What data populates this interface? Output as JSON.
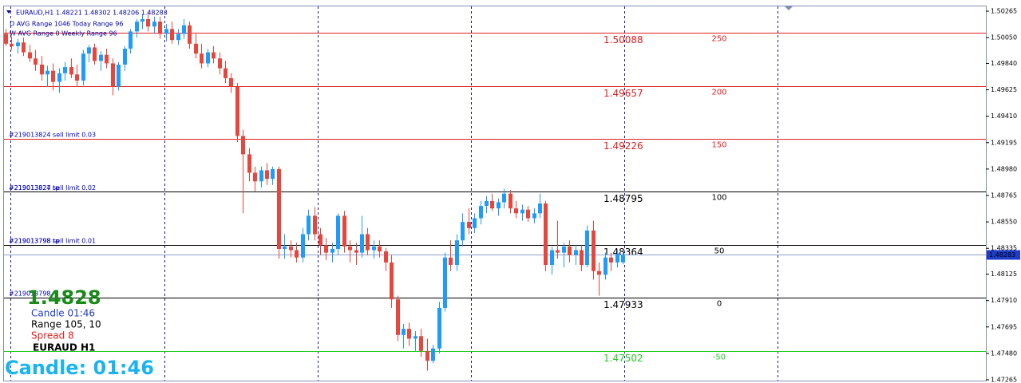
{
  "chart_data": {
    "type": "candlestick",
    "header": [
      "EURAUD,H1  1.48221 1.48302 1.48206 1.48283",
      "D AVG Range 1046    Today Range 96",
      "W AVG Range 0   Weekly Range 96"
    ],
    "up_color": "#1e9bff",
    "down_color": "#e8453c",
    "open": [
      1.5008,
      1.5,
      1.4998,
      1.5001,
      1.4993,
      1.4988,
      1.4983,
      1.4975,
      1.4978,
      1.4969,
      1.4976,
      1.4981,
      1.4975,
      1.497,
      1.4992,
      1.4997,
      1.4986,
      1.4991,
      1.4984,
      1.4965,
      1.4983,
      1.4996,
      1.501,
      1.5018,
      1.502,
      1.5014,
      1.5018,
      1.5008,
      1.5012,
      1.5003,
      1.5008,
      1.5015,
      1.5,
      1.4992,
      1.4984,
      1.4993,
      1.4988,
      1.498,
      1.4972,
      1.4965,
      1.4925,
      1.491,
      1.4895,
      1.4888,
      1.4897,
      1.489,
      1.4898,
      1.4833,
      1.4835,
      1.4832,
      1.4826,
      1.4845,
      1.486,
      1.4845,
      1.4836,
      1.483,
      1.4833,
      1.486,
      1.4835,
      1.4832,
      1.483,
      1.4845,
      1.4832,
      1.4835,
      1.4831,
      1.4822,
      1.4792,
      1.4763,
      1.4768,
      1.476,
      1.4762,
      1.475,
      1.4742,
      1.4752,
      1.4785,
      1.4826,
      1.482,
      1.484,
      1.4855,
      1.485,
      1.4858,
      1.4868,
      1.4872,
      1.4866,
      1.4871,
      1.4878,
      1.4866,
      1.4862,
      1.4865,
      1.4858,
      1.4862,
      1.487,
      1.482,
      1.4832,
      1.483,
      1.4835,
      1.4828,
      1.4832,
      1.482,
      1.4848,
      1.4815,
      1.4812,
      1.4826,
      1.4822,
      1.48221
    ],
    "high": [
      1.5012,
      1.5006,
      1.5004,
      1.5005,
      1.4999,
      1.4995,
      1.499,
      1.4982,
      1.4984,
      1.498,
      1.4985,
      1.4988,
      1.4983,
      1.4995,
      1.4999,
      1.5,
      1.4994,
      1.4996,
      1.4988,
      1.4985,
      1.4998,
      1.5012,
      1.502,
      1.5024,
      1.5026,
      1.5022,
      1.5022,
      1.5016,
      1.5018,
      1.5012,
      1.502,
      1.5018,
      1.5008,
      1.5,
      1.4996,
      1.4998,
      1.4993,
      1.4986,
      1.4976,
      1.4968,
      1.493,
      1.4915,
      1.49,
      1.49,
      1.4903,
      1.49,
      1.49,
      1.4845,
      1.484,
      1.4838,
      1.485,
      1.4865,
      1.4867,
      1.485,
      1.4842,
      1.4838,
      1.4862,
      1.4864,
      1.484,
      1.4838,
      1.486,
      1.485,
      1.484,
      1.484,
      1.4834,
      1.4828,
      1.4795,
      1.4772,
      1.4773,
      1.4766,
      1.4768,
      1.476,
      1.4755,
      1.479,
      1.483,
      1.484,
      1.4845,
      1.4862,
      1.4866,
      1.4862,
      1.4872,
      1.4876,
      1.4878,
      1.4874,
      1.4882,
      1.4881,
      1.4872,
      1.4869,
      1.4868,
      1.4866,
      1.4878,
      1.4872,
      1.4835,
      1.4856,
      1.4838,
      1.484,
      1.4836,
      1.4836,
      1.4852,
      1.4856,
      1.4822,
      1.483,
      1.483,
      1.4832,
      1.48302
    ],
    "low": [
      1.4998,
      1.4995,
      1.4992,
      1.499,
      1.4985,
      1.4978,
      1.497,
      1.4965,
      1.4962,
      1.496,
      1.497,
      1.4972,
      1.4965,
      1.4966,
      1.4985,
      1.4983,
      1.4978,
      1.498,
      1.4958,
      1.4962,
      1.4978,
      1.4992,
      1.5005,
      1.5012,
      1.501,
      1.5008,
      1.5004,
      1.5002,
      1.5,
      1.4999,
      1.5004,
      1.4996,
      1.4988,
      1.498,
      1.4981,
      1.4984,
      1.4975,
      1.4968,
      1.496,
      1.492,
      1.4862,
      1.4888,
      1.488,
      1.4883,
      1.4885,
      1.4885,
      1.4825,
      1.4825,
      1.4826,
      1.4822,
      1.4822,
      1.484,
      1.484,
      1.4828,
      1.4824,
      1.4822,
      1.4828,
      1.483,
      1.4822,
      1.482,
      1.4826,
      1.4828,
      1.4825,
      1.4826,
      1.4815,
      1.4785,
      1.4758,
      1.4752,
      1.4754,
      1.475,
      1.4745,
      1.4734,
      1.474,
      1.4748,
      1.4782,
      1.4815,
      1.4815,
      1.4835,
      1.4845,
      1.4846,
      1.4853,
      1.4862,
      1.4864,
      1.486,
      1.4866,
      1.4862,
      1.4858,
      1.4856,
      1.4855,
      1.4854,
      1.4858,
      1.4815,
      1.4812,
      1.4825,
      1.4818,
      1.4822,
      1.482,
      1.4815,
      1.4818,
      1.4808,
      1.4795,
      1.4808,
      1.4815,
      1.4818,
      1.48206
    ],
    "close": [
      1.5,
      1.4998,
      1.5001,
      1.4993,
      1.4988,
      1.4983,
      1.4975,
      1.4978,
      1.4969,
      1.4976,
      1.4981,
      1.4975,
      1.497,
      1.4992,
      1.4997,
      1.4986,
      1.4991,
      1.4984,
      1.4965,
      1.4983,
      1.4996,
      1.501,
      1.5018,
      1.502,
      1.5014,
      1.5018,
      1.5008,
      1.5012,
      1.5003,
      1.5008,
      1.5015,
      1.5,
      1.4992,
      1.4984,
      1.4993,
      1.4988,
      1.498,
      1.4972,
      1.4965,
      1.4925,
      1.491,
      1.4895,
      1.4888,
      1.4897,
      1.489,
      1.4898,
      1.4833,
      1.4835,
      1.4832,
      1.4826,
      1.4845,
      1.486,
      1.4845,
      1.4836,
      1.483,
      1.4833,
      1.486,
      1.4835,
      1.4832,
      1.483,
      1.4845,
      1.4832,
      1.4835,
      1.4831,
      1.4822,
      1.4792,
      1.4763,
      1.4768,
      1.476,
      1.4762,
      1.475,
      1.4742,
      1.4752,
      1.4785,
      1.4826,
      1.482,
      1.484,
      1.4855,
      1.485,
      1.4858,
      1.4868,
      1.4872,
      1.4866,
      1.4871,
      1.4878,
      1.4866,
      1.4862,
      1.4865,
      1.4858,
      1.4862,
      1.487,
      1.482,
      1.4832,
      1.483,
      1.4835,
      1.4828,
      1.4832,
      1.482,
      1.4848,
      1.4815,
      1.4812,
      1.4826,
      1.4822,
      1.4829,
      1.48283
    ],
    "ylim": [
      1.47265,
      1.50265
    ],
    "yticks": [
      1.50265,
      {
        "value": 1.5005,
        "label": "1.50050"
      },
      {
        "value": 1.4984,
        "label": "1.49840"
      },
      1.49625,
      {
        "value": 1.4941,
        "label": "1.49410"
      },
      1.49195,
      {
        "value": 1.4898,
        "label": "1.48980"
      },
      1.48765,
      {
        "value": 1.4855,
        "label": "1.48550"
      },
      1.48335,
      1.48125,
      {
        "value": 1.4791,
        "label": "1.47910"
      },
      1.47695,
      {
        "value": 1.4748,
        "label": "1.47480"
      },
      1.47265
    ],
    "current_price": 1.48283,
    "levels": [
      {
        "price": 1.50088,
        "pips": 250,
        "color": "#e02020"
      },
      {
        "price": 1.49657,
        "pips": 200,
        "color": "#e02020"
      },
      {
        "price": 1.49226,
        "pips": 150,
        "color": "#e02020"
      },
      {
        "price": 1.48795,
        "pips": 100,
        "color": "#000000"
      },
      {
        "price": 1.48364,
        "pips": 50,
        "color": "#000000"
      },
      {
        "price": 1.47933,
        "pips": 0,
        "color": "#000000"
      },
      {
        "price": 1.47502,
        "pips": -50,
        "color": "#22cc22"
      }
    ],
    "orders": [
      {
        "text": "#219013824 sell limit 0.03",
        "price": 1.49226
      },
      {
        "text": "#219013827 tp",
        "price": 1.48795
      },
      {
        "text": "#219013824 sell limit 0.02",
        "price": 1.48795
      },
      {
        "text": "#219013798 tp",
        "price": 1.48364
      },
      {
        "text": "#219013798 sell limit 0.01",
        "price": 1.48364
      },
      {
        "text": "#219013798",
        "price": 1.47933
      }
    ]
  },
  "panel": {
    "price": "1.4828",
    "candle": "Candle  01:46",
    "range": "Range   105, 10",
    "spread": "Spread  8",
    "symbol": "EURAUD  H1",
    "big_candle": "Candle:  01:46"
  }
}
